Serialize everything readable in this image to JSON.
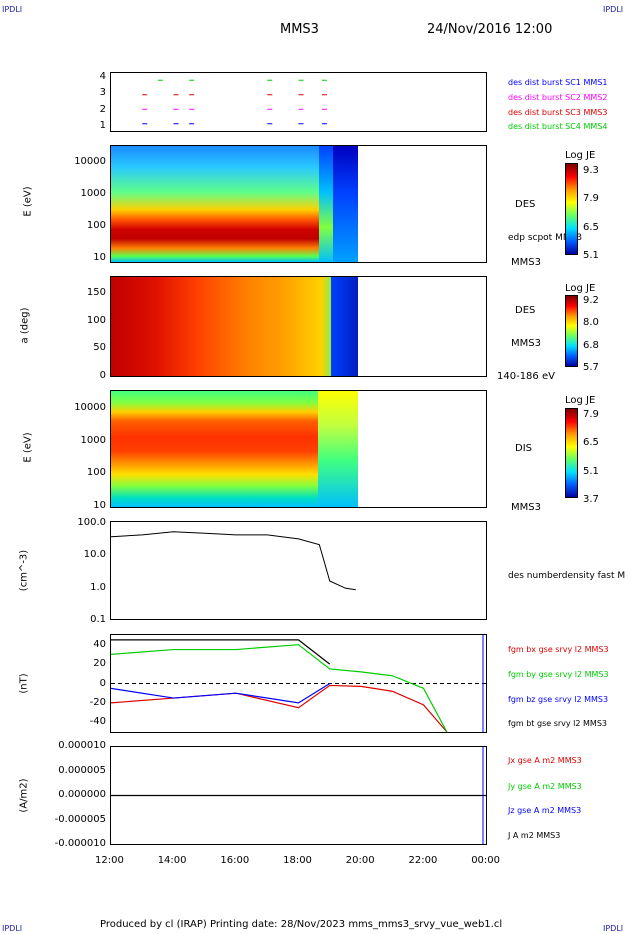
{
  "header": {
    "corner_tl": "IPDLI",
    "corner_tr": "IPDLI",
    "corner_bl": "IPDLI",
    "corner_br": "IPDLI",
    "spacecraft": "MMS3",
    "datetime": "24/Nov/2016 12:00"
  },
  "footer": {
    "text": "Produced by cl (IRAP)   Printing date: 28/Nov/2023   mms_mms3_srvy_vue_web1.cl"
  },
  "time_axis": [
    "12:00",
    "14:00",
    "16:00",
    "18:00",
    "20:00",
    "22:00",
    "00:00"
  ],
  "panel1": {
    "yticks": [
      "4",
      "3",
      "2",
      "1"
    ],
    "labels": [
      {
        "text": "des dist burst SC1 MMS1",
        "color": "#0000ff"
      },
      {
        "text": "des dist burst SC2 MMS2",
        "color": "#ff00ff"
      },
      {
        "text": "des dist burst SC3 MMS3",
        "color": "#dd0000"
      },
      {
        "text": "des dist burst SC4 MMS4",
        "color": "#00cc00"
      }
    ]
  },
  "panel2": {
    "ylabel": "E (eV)",
    "yticks": [
      "10000",
      "1000",
      "100",
      "10"
    ],
    "side_label": "DES",
    "side_label2": "edp scpot MMS3",
    "bottom_label": "MMS3",
    "cbar_title": "Log JE",
    "cbar_ticks": [
      "9.3",
      "7.9",
      "6.5",
      "5.1"
    ]
  },
  "panel3": {
    "ylabel": "a (deg)",
    "yticks": [
      "150",
      "100",
      "50",
      "0"
    ],
    "side_label": "DES",
    "side_label2": "MMS3",
    "bottom_label": "140-186 eV",
    "cbar_title": "Log JE",
    "cbar_ticks": [
      "9.2",
      "8.0",
      "6.8",
      "5.7"
    ]
  },
  "panel4": {
    "ylabel": "E (eV)",
    "yticks": [
      "10000",
      "1000",
      "100",
      "10"
    ],
    "side_label": "DIS",
    "bottom_label": "MMS3",
    "cbar_title": "Log JE",
    "cbar_ticks": [
      "7.9",
      "6.5",
      "5.1",
      "3.7"
    ]
  },
  "panel5": {
    "ylabel": "(cm^-3)",
    "yticks": [
      "100.0",
      "10.0",
      "1.0",
      "0.1"
    ],
    "side_label": "des numberdensity fast M"
  },
  "panel6": {
    "ylabel": "(nT)",
    "yticks": [
      "40",
      "20",
      "0",
      "-20",
      "-40"
    ],
    "labels": [
      {
        "text": "fgm bx gse srvy l2 MMS3",
        "color": "#dd0000"
      },
      {
        "text": "fgm by gse srvy l2 MMS3",
        "color": "#00cc00"
      },
      {
        "text": "fgm bz gse srvy l2 MMS3",
        "color": "#0000ff"
      },
      {
        "text": "fgm bt gse srvy l2 MMS3",
        "color": "#000000"
      }
    ]
  },
  "panel7": {
    "ylabel": "(A/m2)",
    "yticks": [
      "0.000010",
      "0.000005",
      "0.000000",
      "-0.000005",
      "-0.000010"
    ],
    "labels": [
      {
        "text": "Jx gse A m2 MMS3",
        "color": "#dd0000"
      },
      {
        "text": "Jy gse A m2 MMS3",
        "color": "#00cc00"
      },
      {
        "text": "Jz gse A m2 MMS3",
        "color": "#0000ff"
      },
      {
        "text": "J A m2 MMS3",
        "color": "#000000"
      }
    ]
  },
  "chart_data": [
    {
      "type": "scatter",
      "title": "des dist burst",
      "x_range": [
        "12:00",
        "00:00"
      ],
      "ylim": [
        0.5,
        4.5
      ],
      "series": [
        {
          "name": "des dist burst SC1 MMS1",
          "y": 1,
          "x": [
            "13:00",
            "14:00",
            "14:30",
            "17:00",
            "18:00",
            "18:45"
          ]
        },
        {
          "name": "des dist burst SC2 MMS2",
          "y": 2,
          "x": [
            "13:00",
            "14:00",
            "14:30",
            "17:00",
            "18:00",
            "18:45"
          ]
        },
        {
          "name": "des dist burst SC3 MMS3",
          "y": 3,
          "x": [
            "13:00",
            "14:00",
            "14:30",
            "17:00",
            "18:00",
            "18:45"
          ]
        },
        {
          "name": "des dist burst SC4 MMS4",
          "y": 4,
          "x": [
            "13:30",
            "14:30",
            "17:00",
            "18:00",
            "18:45"
          ]
        }
      ]
    },
    {
      "type": "heatmap",
      "ylabel": "E (eV)",
      "yscale": "log",
      "ylim": [
        10,
        30000
      ],
      "colorbar": {
        "title": "Log JE",
        "range": [
          5.1,
          9.3
        ]
      },
      "x_range": [
        "12:00",
        "20:00"
      ],
      "peak_energy_eV": 80
    },
    {
      "type": "heatmap",
      "ylabel": "a (deg)",
      "ylim": [
        0,
        180
      ],
      "colorbar": {
        "title": "Log JE",
        "range": [
          5.7,
          9.2
        ]
      },
      "x_range": [
        "12:00",
        "20:00"
      ]
    },
    {
      "type": "heatmap",
      "ylabel": "E (eV)",
      "yscale": "log",
      "ylim": [
        10,
        30000
      ],
      "colorbar": {
        "title": "Log JE",
        "range": [
          3.7,
          7.9
        ]
      },
      "x_range": [
        "12:00",
        "20:00"
      ],
      "peak_energy_eV": 1000
    },
    {
      "type": "line",
      "ylabel": "(cm^-3)",
      "yscale": "log",
      "ylim": [
        0.1,
        100
      ],
      "series": [
        {
          "name": "des numberdensity fast M",
          "x": [
            "12:00",
            "13:00",
            "14:00",
            "15:00",
            "16:00",
            "17:00",
            "18:00",
            "18:40",
            "19:00",
            "19:30",
            "19:50"
          ],
          "values": [
            35,
            40,
            50,
            45,
            40,
            40,
            30,
            20,
            1.5,
            0.9,
            0.8
          ]
        }
      ]
    },
    {
      "type": "line",
      "ylabel": "(nT)",
      "ylim": [
        -50,
        50
      ],
      "series": [
        {
          "name": "fgm bx gse srvy l2 MMS3",
          "x": [
            "12:00",
            "14:00",
            "16:00",
            "18:00",
            "19:00",
            "20:00",
            "21:00",
            "22:00",
            "22:45"
          ],
          "values": [
            -20,
            -15,
            -10,
            -25,
            -2,
            -3,
            -8,
            -22,
            -50
          ]
        },
        {
          "name": "fgm by gse srvy l2 MMS3",
          "x": [
            "12:00",
            "14:00",
            "16:00",
            "18:00",
            "19:00",
            "20:00",
            "21:00",
            "22:00",
            "22:45"
          ],
          "values": [
            30,
            35,
            35,
            40,
            15,
            12,
            8,
            -5,
            -50
          ]
        },
        {
          "name": "fgm bz gse srvy l2 MMS3",
          "x": [
            "12:00",
            "14:00",
            "16:00",
            "18:00",
            "19:00"
          ],
          "values": [
            -5,
            -15,
            -10,
            -20,
            0
          ]
        },
        {
          "name": "fgm bt gse srvy l2 MMS3",
          "x": [
            "12:00",
            "14:00",
            "16:00",
            "18:00",
            "19:00"
          ],
          "values": [
            45,
            45,
            45,
            45,
            20
          ]
        }
      ]
    },
    {
      "type": "line",
      "ylabel": "(A/m2)",
      "ylim": [
        -1e-05,
        1e-05
      ],
      "series": [
        {
          "name": "Jx gse A m2 MMS3",
          "values": [
            0
          ]
        },
        {
          "name": "Jy gse A m2 MMS3",
          "values": [
            0
          ]
        },
        {
          "name": "Jz gse A m2 MMS3",
          "values": [
            0
          ]
        },
        {
          "name": "J A m2 MMS3",
          "values": [
            0
          ]
        }
      ]
    }
  ]
}
